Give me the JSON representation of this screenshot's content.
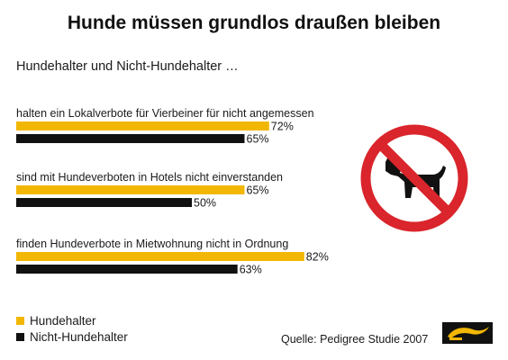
{
  "title": "Hunde müssen grundlos draußen bleiben",
  "subtitle": "Hundehalter und Nicht-Hundehalter …",
  "source": "Quelle: Pedigree Studie 2007",
  "colors": {
    "owners": "#f2b705",
    "non_owners": "#111111"
  },
  "icons": {
    "sign": "no-dogs-sign-icon",
    "logo": "pedigree-logo-icon"
  },
  "chart_data": {
    "type": "bar",
    "orientation": "horizontal",
    "categories": [
      "halten ein Lokalverbote für Vierbeiner für nicht angemessen",
      "sind mit Hundeverboten in Hotels nicht einverstanden",
      "finden Hundeverbote in Mietwohnung nicht in Ordnung"
    ],
    "series": [
      {
        "name": "Hundehalter",
        "values": [
          72,
          65,
          82
        ],
        "color": "#f2b705"
      },
      {
        "name": "Nicht-Hundehalter",
        "values": [
          65,
          50,
          63
        ],
        "color": "#111111"
      }
    ],
    "value_suffix": "%",
    "xlim": [
      0,
      100
    ],
    "legend": "bottom-left",
    "grid": false
  }
}
